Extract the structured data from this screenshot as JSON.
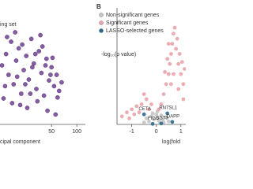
{
  "chart_data": [
    {
      "type": "scatter",
      "legend_position": "top-left",
      "xlabel": "cipal component",
      "xlim": [
        -52,
        117
      ],
      "ylim": [
        0,
        100
      ],
      "xticks": [
        50,
        100
      ],
      "series": [
        {
          "name": "ing set",
          "color": "#7a4a9c",
          "x": [
            -48,
            -40,
            -35,
            -30,
            -25,
            -20,
            -15,
            -10,
            -5,
            0,
            5,
            10,
            15,
            20,
            25,
            30,
            35,
            40,
            45,
            50,
            55,
            60,
            65,
            70,
            -45,
            -38,
            -28,
            -18,
            -8,
            2,
            12,
            22,
            32,
            42,
            52,
            62,
            -42,
            -22,
            -2,
            18,
            38,
            58,
            8,
            28,
            48,
            -12
          ],
          "y": [
            60,
            72,
            50,
            85,
            40,
            65,
            78,
            30,
            55,
            70,
            45,
            88,
            62,
            35,
            75,
            52,
            28,
            67,
            44,
            58,
            38,
            50,
            33,
            42,
            25,
            90,
            20,
            48,
            82,
            15,
            58,
            22,
            80,
            12,
            68,
            26,
            38,
            95,
            40,
            72,
            60,
            8,
            30,
            92,
            50,
            18
          ]
        }
      ]
    },
    {
      "type": "scatter",
      "panel_label": "B",
      "legend_position": "top-left",
      "ylabel": "-log₁₀(p value)",
      "xlabel": "log(fold",
      "xlim": [
        -1.6,
        1.2
      ],
      "ylim": [
        0,
        10
      ],
      "xticks": [
        -1,
        0,
        1
      ],
      "series": [
        {
          "name": "Non-significant genes",
          "color": "#c4c4c4",
          "x": [
            -0.3,
            -0.2,
            -0.1,
            0,
            0.1,
            0.2,
            0.3,
            -0.4,
            0.4,
            0.05,
            -0.15,
            0.25,
            0.5,
            -0.5,
            0.15
          ],
          "y": [
            0.3,
            0.8,
            0.5,
            1,
            0.4,
            0.9,
            0.2,
            0.6,
            0.7,
            1.3,
            1.1,
            0.5,
            0.3,
            0.2,
            0.1
          ]
        },
        {
          "name": "Significant genes",
          "color": "#e9a3aa",
          "x": [
            0.3,
            0.4,
            0.5,
            0.55,
            0.6,
            0.65,
            0.7,
            0.75,
            0.8,
            0.9,
            1.0,
            1.1,
            0.45,
            0.5,
            0.7,
            0.85,
            0.95,
            1.05,
            1.15,
            0.6,
            0.35,
            0.9,
            1.1,
            0.2,
            0.1,
            -0.2,
            -0.4,
            -0.6,
            -0.8,
            -1,
            -1.2,
            -1.4,
            -0.5,
            -0.3,
            -0.9,
            -0.7,
            -1.1
          ],
          "y": [
            3,
            4,
            5,
            6,
            7,
            8,
            9,
            9.6,
            7.5,
            6,
            5,
            4,
            6.5,
            8,
            5,
            8.5,
            7,
            6.2,
            5.5,
            4,
            5.2,
            3.5,
            2.5,
            2,
            1.5,
            2,
            2.5,
            2,
            1.8,
            1.5,
            1.2,
            0.8,
            3,
            1.5,
            1,
            1.2,
            0.6
          ]
        },
        {
          "name": "LASSO-selected genes",
          "color": "#2c6a8c",
          "x": [
            -0.5,
            0.45,
            0.2,
            0.65,
            -0.15
          ],
          "y": [
            1.0,
            1.1,
            0.1,
            0.25,
            0.05
          ],
          "point_labels": [
            "CETA",
            "RN7SL1",
            "GST3",
            "DAPP",
            "FIGS"
          ]
        }
      ]
    }
  ]
}
